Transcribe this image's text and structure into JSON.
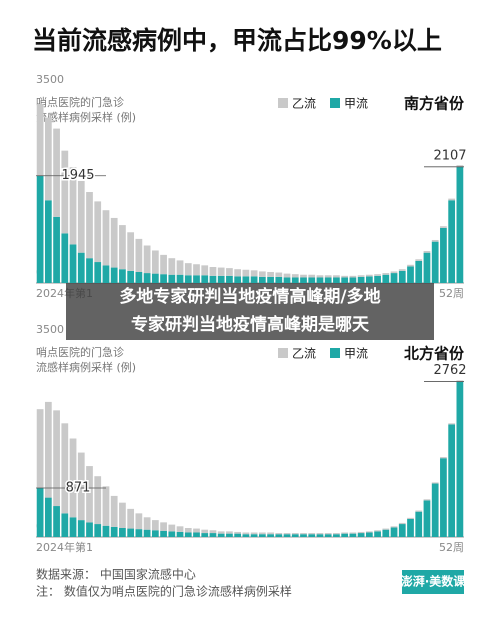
{
  "title": "当前流感病例中，甲流占比99%以上",
  "overlay_caption": [
    "多地专家研判当地疫情高峰期/多地",
    "专家研判当地疫情高峰期是哪天"
  ],
  "source": "数据来源：  中国国家流感中心",
  "note": "注：  数值仅为哨点医院的门急诊流感样病例采样",
  "logo": "澎湃·美数课",
  "chart_data": [
    {
      "type": "bar",
      "stacked": true,
      "title": "南方省份",
      "y_label": [
        "哨点医院的门急诊",
        "流感样病例采样 (例)"
      ],
      "categories": [
        "2024年第1",
        null,
        null,
        null,
        null,
        null,
        null,
        null,
        null,
        null,
        null,
        null,
        null,
        null,
        null,
        null,
        null,
        null,
        null,
        null,
        null,
        null,
        null,
        null,
        null,
        null,
        null,
        null,
        null,
        null,
        null,
        null,
        null,
        null,
        null,
        null,
        null,
        null,
        null,
        null,
        null,
        null,
        null,
        null,
        null,
        null,
        null,
        null,
        null,
        null,
        null,
        "52周"
      ],
      "ylim": [
        0,
        3500
      ],
      "yticks": [
        0,
        3500
      ],
      "series": [
        {
          "name": "乙流",
          "color": "#c9c9c9",
          "values": [
            1300,
            1500,
            1600,
            1500,
            1400,
            1300,
            1200,
            1100,
            1000,
            900,
            800,
            700,
            600,
            500,
            420,
            350,
            300,
            260,
            220,
            200,
            180,
            160,
            150,
            140,
            130,
            120,
            110,
            100,
            90,
            80,
            70,
            60,
            50,
            50,
            40,
            40,
            40,
            30,
            30,
            30,
            30,
            30,
            30,
            30,
            30,
            30,
            30,
            30,
            30,
            30,
            30,
            30
          ]
        },
        {
          "name": "甲流",
          "color": "#1fa8a6",
          "values": [
            1945,
            1500,
            1200,
            900,
            700,
            550,
            450,
            380,
            320,
            280,
            250,
            220,
            200,
            180,
            170,
            160,
            150,
            150,
            140,
            140,
            140,
            130,
            130,
            130,
            120,
            120,
            120,
            110,
            110,
            110,
            100,
            100,
            100,
            100,
            100,
            100,
            100,
            100,
            100,
            110,
            120,
            130,
            150,
            180,
            220,
            300,
            400,
            550,
            750,
            1000,
            1500,
            2107
          ]
        }
      ]
    },
    {
      "type": "bar",
      "stacked": true,
      "title": "北方省份",
      "y_label": [
        "哨点医院的门急诊",
        "流感样病例采样 (例)"
      ],
      "categories": [
        "2024年第1",
        null,
        null,
        null,
        null,
        null,
        null,
        null,
        null,
        null,
        null,
        null,
        null,
        null,
        null,
        null,
        null,
        null,
        null,
        null,
        null,
        null,
        null,
        null,
        null,
        null,
        null,
        null,
        null,
        null,
        null,
        null,
        null,
        null,
        null,
        null,
        null,
        null,
        null,
        null,
        null,
        null,
        null,
        null,
        null,
        null,
        null,
        null,
        null,
        null,
        null,
        "52周"
      ],
      "ylim": [
        0,
        3500
      ],
      "yticks": [
        0,
        3500
      ],
      "series": [
        {
          "name": "乙流",
          "color": "#c9c9c9",
          "values": [
            1400,
            1700,
            1700,
            1600,
            1400,
            1200,
            1000,
            850,
            700,
            550,
            450,
            350,
            280,
            220,
            180,
            150,
            120,
            100,
            80,
            70,
            60,
            50,
            40,
            40,
            30,
            30,
            30,
            30,
            30,
            20,
            20,
            20,
            20,
            20,
            20,
            20,
            20,
            20,
            20,
            20,
            20,
            20,
            20,
            20,
            20,
            20,
            20,
            20,
            20,
            20,
            20,
            20
          ]
        },
        {
          "name": "甲流",
          "color": "#1fa8a6",
          "values": [
            871,
            700,
            550,
            420,
            350,
            300,
            260,
            230,
            200,
            180,
            160,
            150,
            140,
            130,
            120,
            110,
            100,
            90,
            80,
            80,
            70,
            70,
            60,
            60,
            60,
            50,
            50,
            50,
            50,
            50,
            50,
            50,
            50,
            50,
            50,
            50,
            50,
            60,
            60,
            70,
            80,
            100,
            130,
            170,
            230,
            320,
            450,
            650,
            950,
            1400,
            2000,
            2762
          ]
        }
      ]
    }
  ]
}
